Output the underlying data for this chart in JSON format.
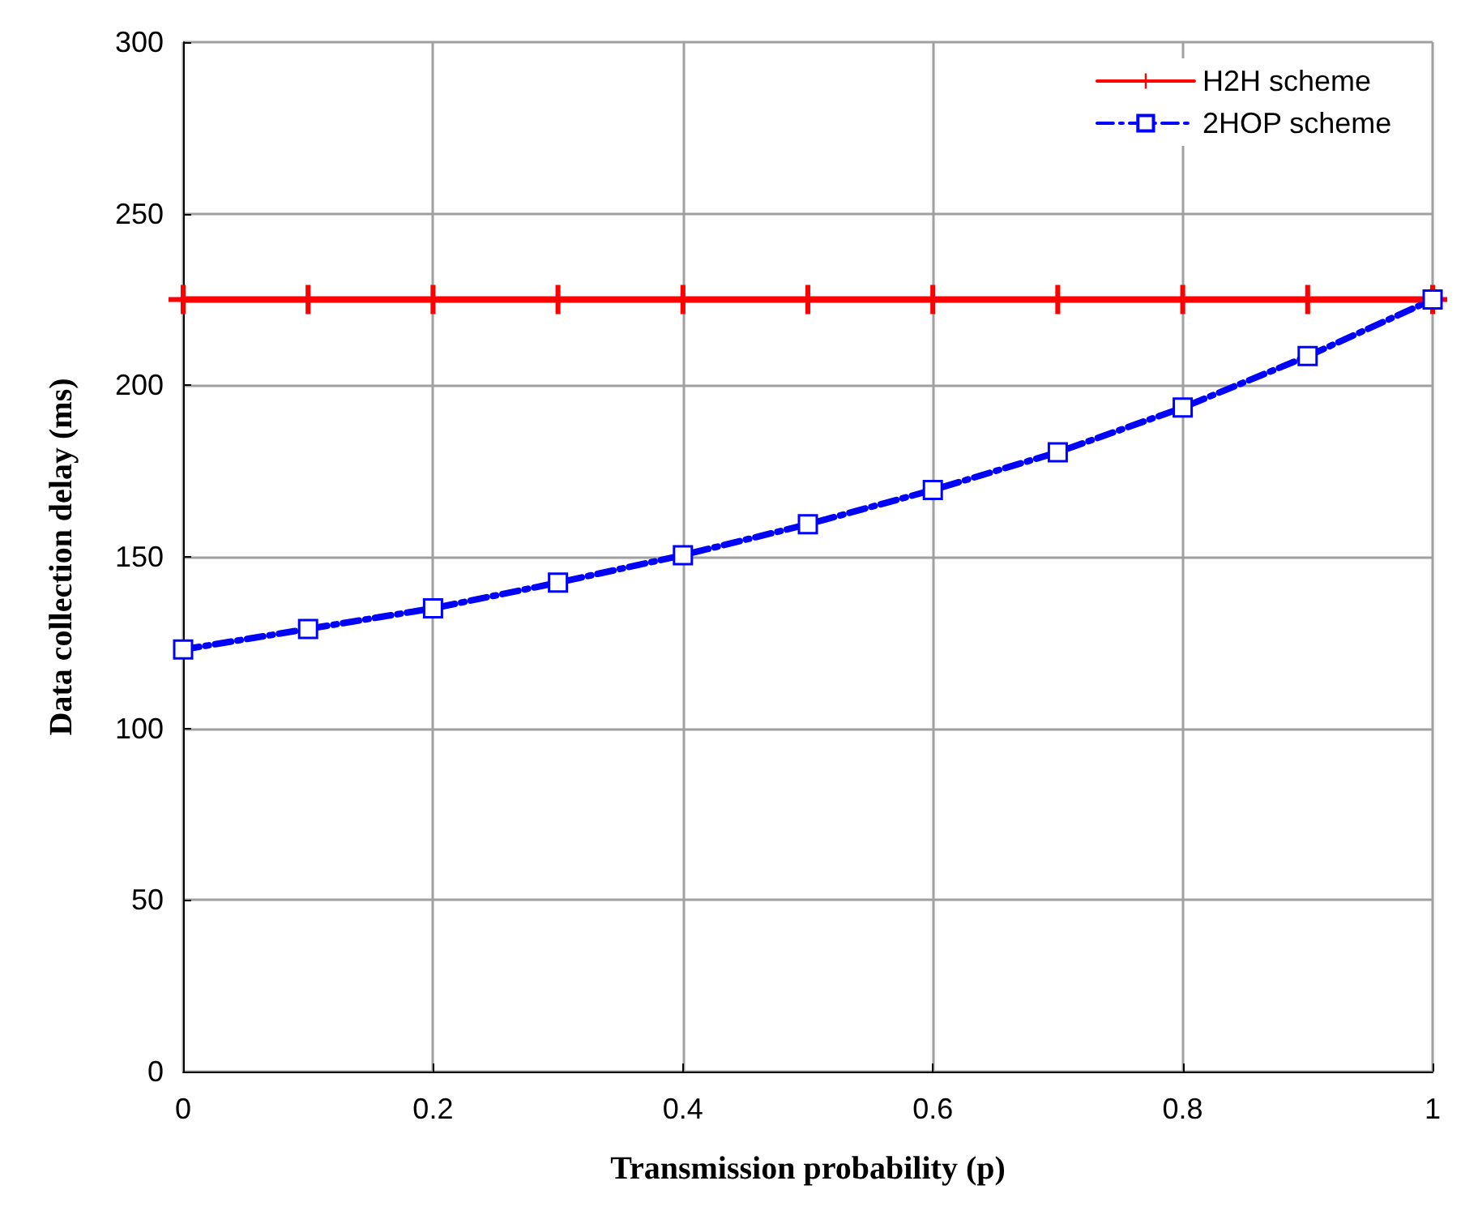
{
  "chart_data": {
    "type": "line",
    "xlabel": "Transmission probability (p)",
    "ylabel": "Data collection delay (ms)",
    "x": [
      0,
      0.1,
      0.2,
      0.3,
      0.4,
      0.5,
      0.6,
      0.7,
      0.8,
      0.9,
      1
    ],
    "series": [
      {
        "name": "H2H scheme",
        "color": "#ff0000",
        "marker": "cross",
        "line_style": "solid",
        "values": [
          225,
          225,
          225,
          225,
          225,
          225,
          225,
          225,
          225,
          225,
          225
        ]
      },
      {
        "name": "2HOP scheme",
        "color": "#0000ff",
        "marker": "square",
        "line_style": "dashed",
        "values": [
          123,
          129,
          135,
          142.5,
          150.5,
          159.5,
          169.5,
          180.5,
          193.5,
          208.5,
          225
        ]
      }
    ],
    "xlim": [
      0,
      1
    ],
    "xticks": [
      0,
      0.2,
      0.4,
      0.6,
      0.8,
      1
    ],
    "ylim": [
      0,
      300
    ],
    "yticks": [
      0,
      50,
      100,
      150,
      200,
      250,
      300
    ],
    "grid": true,
    "legend": "top right"
  }
}
